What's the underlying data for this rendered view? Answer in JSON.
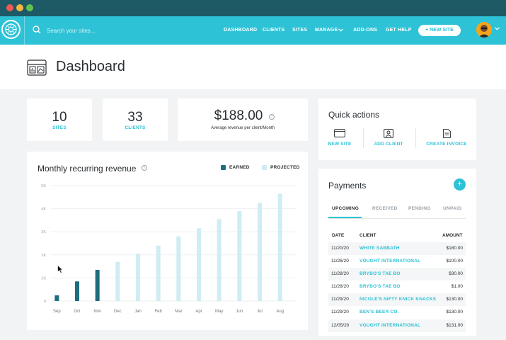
{
  "titlebar": {
    "dots": [
      "#ee5a52",
      "#f4b63d",
      "#5fc44f"
    ]
  },
  "nav": {
    "search_placeholder": "Search your sites...",
    "links": [
      "DASHBOARD",
      "CLIENTS",
      "SITES",
      "MANAGE",
      "ADD-ONS",
      "GET HELP"
    ],
    "new_site": "+ NEW SITE",
    "accent": "#2dc2d6"
  },
  "header": {
    "title": "Dashboard"
  },
  "stats": {
    "sites": {
      "value": "10",
      "label": "SITES"
    },
    "clients": {
      "value": "33",
      "label": "CLIENTS"
    },
    "revenue": {
      "value": "$188.00",
      "label": "Average revenue per client/Month"
    }
  },
  "mrr": {
    "title": "Monthly recurring revenue",
    "legend_earned": "EARNED",
    "legend_projected": "PROJECTED",
    "colors": {
      "earned": "#1e6e80",
      "projected": "#cfedf3"
    }
  },
  "chart_data": {
    "type": "bar",
    "categories": [
      "Sep",
      "Oct",
      "Nov",
      "Dec",
      "Jan",
      "Feb",
      "Mar",
      "Apr",
      "May",
      "Jun",
      "Jul",
      "Aug"
    ],
    "series": [
      {
        "name": "EARNED",
        "values": [
          250,
          850,
          1350,
          0,
          0,
          0,
          0,
          0,
          0,
          0,
          0,
          0
        ]
      },
      {
        "name": "PROJECTED",
        "values": [
          0,
          0,
          0,
          1700,
          2050,
          2400,
          2800,
          3150,
          3550,
          3900,
          4250,
          4650
        ]
      }
    ],
    "y_ticks": [
      "0",
      "1K",
      "2K",
      "3K",
      "4K",
      "5K"
    ],
    "ylim": [
      0,
      5000
    ],
    "grid": true,
    "legend": "top-right"
  },
  "quick_actions": {
    "title": "Quick actions",
    "items": [
      {
        "label": "NEW SITE",
        "icon": "browser-window-icon"
      },
      {
        "label": "ADD CLIENT",
        "icon": "user-card-icon"
      },
      {
        "label": "CREATE INVOICE",
        "icon": "invoice-icon"
      }
    ]
  },
  "payments": {
    "title": "Payments",
    "add": "+",
    "tabs": [
      "UPCOMING",
      "RECEIVED",
      "PENDING",
      "UNPAID"
    ],
    "columns": [
      "DATE",
      "CLIENT",
      "AMOUNT"
    ],
    "rows": [
      {
        "date": "11/20/20",
        "client": "WHITE SABBATH",
        "amount": "$180.00"
      },
      {
        "date": "11/26/20",
        "client": "VOUGHT INTERNATIONAL",
        "amount": "$100.00"
      },
      {
        "date": "11/28/20",
        "client": "BRYBO'S TAE BO",
        "amount": "$30.00"
      },
      {
        "date": "11/28/20",
        "client": "BRYBO'S TAE BO",
        "amount": "$1.00"
      },
      {
        "date": "11/29/20",
        "client": "NICOLE'S NIFTY KNICK KNACKS",
        "amount": "$130.00"
      },
      {
        "date": "11/29/20",
        "client": "BEN'S BEER CO.",
        "amount": "$130.00"
      },
      {
        "date": "12/05/20",
        "client": "VOUGHT INTERNATIONAL",
        "amount": "$131.00"
      }
    ]
  }
}
